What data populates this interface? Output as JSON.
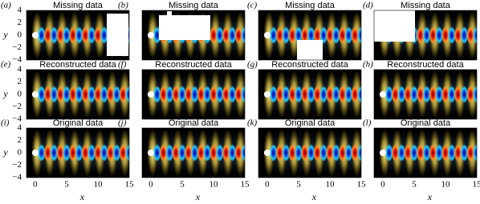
{
  "panels": [
    {
      "label": "(a)",
      "title": "Missing data"
    },
    {
      "label": "(b)",
      "title": "Missing data"
    },
    {
      "label": "(c)",
      "title": "Missing data"
    },
    {
      "label": "(d)",
      "title": "Missing data"
    },
    {
      "label": "(e)",
      "title": "Reconstructed data"
    },
    {
      "label": "(f)",
      "title": "Reconstructed data"
    },
    {
      "label": "(g)",
      "title": "Reconstructed data"
    },
    {
      "label": "(h)",
      "title": "Reconstructed data"
    },
    {
      "label": "(i)",
      "title": "Original data"
    },
    {
      "label": "(j)",
      "title": "Original data"
    },
    {
      "label": "(k)",
      "title": "Original data"
    },
    {
      "label": "(l)",
      "title": "Original data"
    }
  ],
  "y_axis": {
    "label": "y",
    "ticks": [
      "4",
      "2",
      "0",
      "−2",
      "−4"
    ]
  },
  "x_axis": {
    "label": "x",
    "ticks": [
      "0",
      "5",
      "10",
      "15"
    ]
  }
}
